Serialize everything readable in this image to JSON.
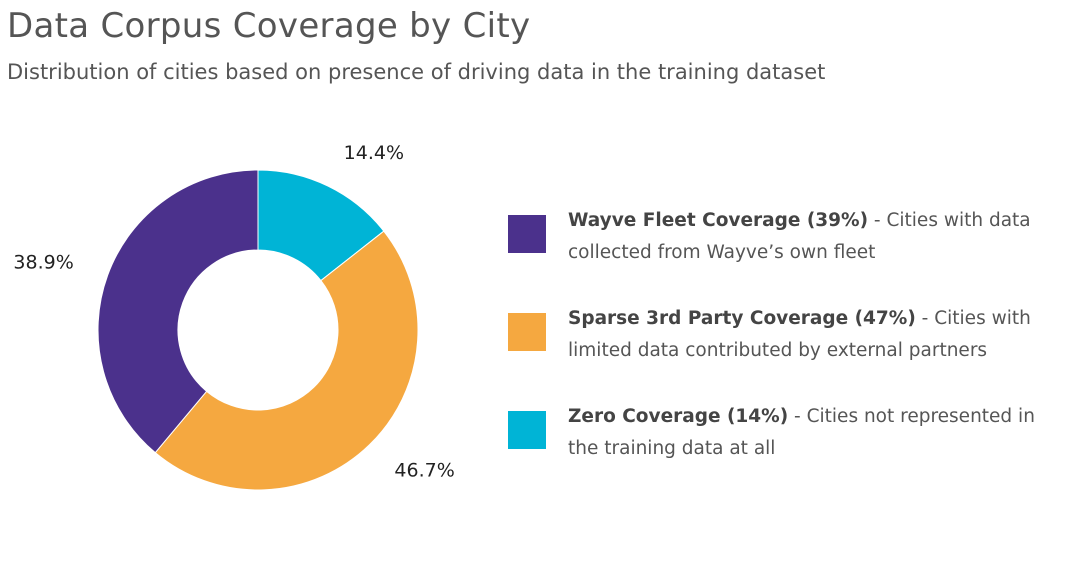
{
  "title": "Data Corpus Coverage by City",
  "subtitle": "Distribution of cities based on presence of driving data in the training dataset",
  "chart_data": {
    "type": "pie",
    "style": "donut",
    "categories": [
      "Zero Coverage",
      "Sparse 3rd Party Coverage",
      "Wayve Fleet Coverage"
    ],
    "values": [
      14.4,
      46.7,
      38.9
    ],
    "value_labels": [
      "14.4%",
      "46.7%",
      "38.9%"
    ],
    "colors": [
      "#00B4D6",
      "#F5A840",
      "#4B318C"
    ],
    "legend_placement": "right"
  },
  "legend": [
    {
      "color": "#4B318C",
      "label": "Wayve Fleet Coverage (39%)",
      "description": " - Cities with data collected from Wayve’s own fleet"
    },
    {
      "color": "#F5A840",
      "label": "Sparse 3rd Party Coverage (47%)",
      "description": " - Cities with limited data contributed by external partners"
    },
    {
      "color": "#00B4D6",
      "label": "Zero Coverage (14%)",
      "description": " - Cities not represented in the training data at all"
    }
  ]
}
